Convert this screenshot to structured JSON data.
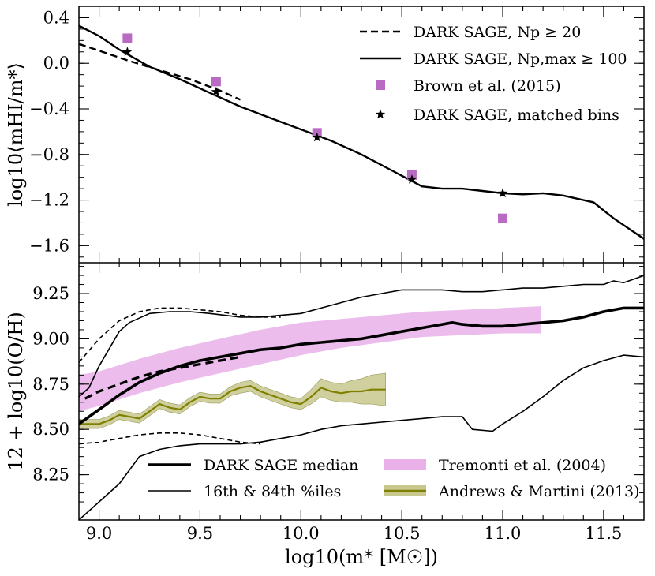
{
  "chart_data": [
    {
      "type": "line",
      "xlabel": "log10(m* [M☉])",
      "ylabel": "log10⟨mHI/m*⟩",
      "xlim": [
        8.9,
        11.7
      ],
      "ylim": [
        -1.75,
        0.5
      ],
      "xticks": [
        9.0,
        9.5,
        10.0,
        10.5,
        11.0,
        11.5
      ],
      "xtick_labels": [
        "9.0",
        "9.5",
        "10.0",
        "10.5",
        "11.0",
        "11.5"
      ],
      "yticks": [
        0.4,
        0.0,
        -0.4,
        -0.8,
        -1.2,
        -1.6
      ],
      "ytick_labels": [
        "0.4",
        "0.0",
        "−0.4",
        "−0.8",
        "−1.2",
        "−1.6"
      ],
      "legend_position": "top-right",
      "series": [
        {
          "name": "Dark Sage, Np ≥ 20",
          "legend_label": "DARK SAGE, Np ≥ 20",
          "style": "dashed",
          "color": "#000000",
          "x": [
            8.9,
            9.0,
            9.15,
            9.3,
            9.45,
            9.6,
            9.7
          ],
          "y": [
            0.17,
            0.11,
            0.02,
            -0.06,
            -0.14,
            -0.24,
            -0.32
          ]
        },
        {
          "name": "Dark Sage, Np,max ≥ 100",
          "legend_label": "DARK SAGE, Np,max ≥ 100",
          "style": "solid",
          "color": "#000000",
          "x": [
            8.9,
            9.0,
            9.1,
            9.25,
            9.4,
            9.55,
            9.7,
            9.85,
            10.0,
            10.15,
            10.3,
            10.45,
            10.6,
            10.7,
            10.8,
            10.9,
            11.0,
            11.1,
            11.2,
            11.3,
            11.45,
            11.55,
            11.7
          ],
          "y": [
            0.33,
            0.24,
            0.12,
            -0.03,
            -0.14,
            -0.26,
            -0.38,
            -0.48,
            -0.58,
            -0.68,
            -0.8,
            -0.94,
            -1.08,
            -1.1,
            -1.1,
            -1.12,
            -1.14,
            -1.15,
            -1.14,
            -1.16,
            -1.22,
            -1.36,
            -1.54
          ]
        },
        {
          "name": "Brown et al. (2015)",
          "legend_label": "Brown et al. (2015)",
          "style": "square-markers",
          "color": "#b96bc4",
          "x": [
            9.14,
            9.58,
            10.08,
            10.55,
            11.0
          ],
          "y": [
            0.22,
            -0.16,
            -0.61,
            -0.98,
            -1.36
          ]
        },
        {
          "name": "Dark Sage, matched bins",
          "legend_label": "DARK SAGE, matched bins",
          "style": "star-markers",
          "color": "#000000",
          "x": [
            9.14,
            9.58,
            10.08,
            10.55,
            11.0
          ],
          "y": [
            0.1,
            -0.25,
            -0.65,
            -1.02,
            -1.14
          ]
        }
      ]
    },
    {
      "type": "line",
      "xlabel": "log10(m* [M☉])",
      "ylabel": "12 + log10(O/H)",
      "xlim": [
        8.9,
        11.7
      ],
      "ylim": [
        8.0,
        9.42
      ],
      "xticks": [
        9.0,
        9.5,
        10.0,
        10.5,
        11.0,
        11.5
      ],
      "xtick_labels": [
        "9.0",
        "9.5",
        "10.0",
        "10.5",
        "11.0",
        "11.5"
      ],
      "yticks": [
        9.25,
        9.0,
        8.75,
        8.5,
        8.25
      ],
      "ytick_labels": [
        "9.25",
        "9.00",
        "8.75",
        "8.50",
        "8.25"
      ],
      "legend_position": "bottom",
      "series": [
        {
          "name": "Tremonti et al. (2004)",
          "legend_label": "Tremonti et al. (2004)",
          "style": "band",
          "color": "#e9b0e9",
          "x": [
            8.9,
            9.0,
            9.2,
            9.4,
            9.6,
            9.8,
            10.0,
            10.2,
            10.4,
            10.6,
            10.8,
            11.0,
            11.19
          ],
          "lower": [
            8.6,
            8.63,
            8.7,
            8.76,
            8.81,
            8.86,
            8.91,
            8.95,
            8.98,
            9.01,
            9.02,
            9.03,
            9.03
          ],
          "upper": [
            8.8,
            8.82,
            8.89,
            8.95,
            9.0,
            9.05,
            9.09,
            9.11,
            9.13,
            9.15,
            9.16,
            9.17,
            9.18
          ]
        },
        {
          "name": "Andrews & Martini (2013)",
          "legend_label": "Andrews & Martini (2013)",
          "style": "line-with-band",
          "color": "#808000",
          "band_color": "#c8c88e",
          "x": [
            8.9,
            8.93,
            9.0,
            9.05,
            9.1,
            9.15,
            9.2,
            9.25,
            9.3,
            9.35,
            9.4,
            9.45,
            9.5,
            9.55,
            9.6,
            9.65,
            9.7,
            9.75,
            9.8,
            9.85,
            9.9,
            9.95,
            10.0,
            10.05,
            10.1,
            10.15,
            10.2,
            10.25,
            10.3,
            10.35,
            10.42
          ],
          "y": [
            8.53,
            8.53,
            8.53,
            8.55,
            8.58,
            8.57,
            8.56,
            8.6,
            8.64,
            8.62,
            8.61,
            8.65,
            8.68,
            8.67,
            8.67,
            8.71,
            8.73,
            8.74,
            8.71,
            8.69,
            8.67,
            8.65,
            8.64,
            8.68,
            8.73,
            8.71,
            8.7,
            8.71,
            8.71,
            8.72,
            8.72
          ],
          "err": [
            0.025,
            0.025,
            0.025,
            0.025,
            0.025,
            0.025,
            0.025,
            0.025,
            0.025,
            0.025,
            0.025,
            0.025,
            0.025,
            0.025,
            0.025,
            0.025,
            0.03,
            0.03,
            0.03,
            0.03,
            0.03,
            0.03,
            0.03,
            0.04,
            0.05,
            0.05,
            0.05,
            0.06,
            0.07,
            0.08,
            0.09
          ]
        },
        {
          "name": "Dark Sage median",
          "legend_label": "DARK SAGE median",
          "style": "thick-solid",
          "color": "#000000",
          "x": [
            8.9,
            9.0,
            9.1,
            9.2,
            9.3,
            9.4,
            9.5,
            9.6,
            9.7,
            9.8,
            9.9,
            10.0,
            10.1,
            10.2,
            10.3,
            10.4,
            10.5,
            10.6,
            10.7,
            10.75,
            10.8,
            10.9,
            11.0,
            11.1,
            11.2,
            11.3,
            11.4,
            11.5,
            11.6,
            11.65,
            11.7
          ],
          "y": [
            8.53,
            8.61,
            8.69,
            8.76,
            8.81,
            8.85,
            8.88,
            8.9,
            8.92,
            8.94,
            8.95,
            8.97,
            8.98,
            8.99,
            9.0,
            9.02,
            9.04,
            9.06,
            9.08,
            9.09,
            9.08,
            9.07,
            9.07,
            9.08,
            9.09,
            9.1,
            9.12,
            9.15,
            9.17,
            9.17,
            9.17
          ]
        },
        {
          "name": "Dark Sage median, Np ≥ 20",
          "style": "thick-dashed",
          "color": "#000000",
          "x": [
            8.93,
            9.0,
            9.1,
            9.2,
            9.3,
            9.4,
            9.5,
            9.6,
            9.7
          ],
          "y": [
            8.67,
            8.71,
            8.75,
            8.79,
            8.82,
            8.84,
            8.86,
            8.88,
            8.9
          ]
        },
        {
          "name": "16th percentile",
          "legend_label": "16th & 84th %iles",
          "style": "thin-solid",
          "color": "#000000",
          "x": [
            8.9,
            9.0,
            9.1,
            9.2,
            9.3,
            9.4,
            9.5,
            9.6,
            9.7,
            9.8,
            9.9,
            10.0,
            10.1,
            10.2,
            10.3,
            10.4,
            10.5,
            10.6,
            10.7,
            10.8,
            10.85,
            10.95,
            11.0,
            11.1,
            11.2,
            11.3,
            11.4,
            11.5,
            11.6,
            11.7
          ],
          "y": [
            8.0,
            8.1,
            8.2,
            8.35,
            8.39,
            8.41,
            8.42,
            8.42,
            8.42,
            8.43,
            8.45,
            8.47,
            8.5,
            8.52,
            8.53,
            8.54,
            8.55,
            8.56,
            8.57,
            8.57,
            8.5,
            8.49,
            8.53,
            8.6,
            8.68,
            8.77,
            8.84,
            8.88,
            8.91,
            8.9
          ]
        },
        {
          "name": "84th percentile",
          "style": "thin-solid",
          "color": "#000000",
          "x": [
            8.9,
            8.95,
            9.0,
            9.1,
            9.15,
            9.25,
            9.35,
            9.45,
            9.55,
            9.7,
            9.8,
            9.9,
            10.0,
            10.1,
            10.2,
            10.3,
            10.4,
            10.5,
            10.55,
            10.7,
            10.8,
            10.9,
            11.0,
            11.1,
            11.2,
            11.3,
            11.4,
            11.5,
            11.55,
            11.6,
            11.65,
            11.7
          ],
          "y": [
            8.68,
            8.73,
            8.85,
            9.04,
            9.09,
            9.14,
            9.15,
            9.15,
            9.14,
            9.12,
            9.12,
            9.13,
            9.14,
            9.17,
            9.2,
            9.23,
            9.25,
            9.27,
            9.27,
            9.27,
            9.26,
            9.26,
            9.27,
            9.28,
            9.28,
            9.29,
            9.3,
            9.3,
            9.32,
            9.31,
            9.33,
            9.35
          ]
        },
        {
          "name": "16th percentile, Np ≥ 20",
          "style": "thin-dashed",
          "color": "#000000",
          "x": [
            8.9,
            9.0,
            9.1,
            9.2,
            9.3,
            9.4,
            9.5,
            9.6,
            9.7,
            9.8
          ],
          "y": [
            8.42,
            8.43,
            8.45,
            8.47,
            8.48,
            8.48,
            8.47,
            8.45,
            8.43,
            8.42
          ]
        },
        {
          "name": "84th percentile, Np ≥ 20",
          "style": "thin-dashed",
          "color": "#000000",
          "x": [
            8.9,
            9.0,
            9.1,
            9.2,
            9.3,
            9.4,
            9.5,
            9.6,
            9.7,
            9.8,
            9.9
          ],
          "y": [
            8.87,
            9.0,
            9.1,
            9.15,
            9.17,
            9.17,
            9.16,
            9.15,
            9.13,
            9.12,
            9.12
          ]
        }
      ]
    }
  ]
}
